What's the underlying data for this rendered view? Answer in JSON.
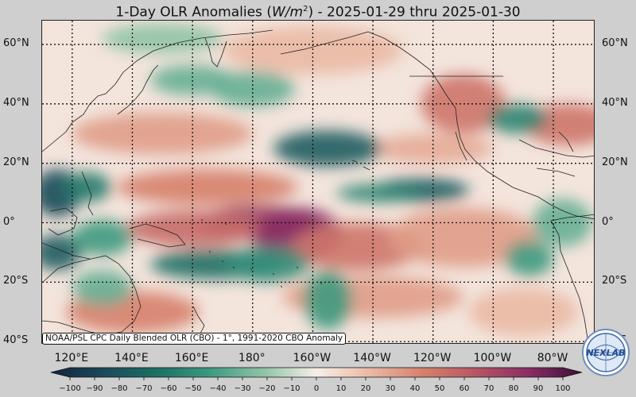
{
  "title": {
    "prefix": "1-Day OLR Anomalies (",
    "var": "W/m",
    "exp": "2",
    "suffix": ") - 2025-01-29 thru 2025-01-30"
  },
  "source_note": "NOAA/PSL CPC Daily Blended OLR (CBO) - 1°, 1991-2020 CBO Anomaly",
  "logo_text": "NEXLAB",
  "lat_labels": [
    {
      "text": "60°N",
      "lat": 60
    },
    {
      "text": "40°N",
      "lat": 40
    },
    {
      "text": "20°N",
      "lat": 20
    },
    {
      "text": "0°",
      "lat": 0
    },
    {
      "text": "20°S",
      "lat": -20
    },
    {
      "text": "40°S",
      "lat": -40
    }
  ],
  "lon_labels": [
    {
      "text": "120°E",
      "lon": 120
    },
    {
      "text": "140°E",
      "lon": 140
    },
    {
      "text": "160°E",
      "lon": 160
    },
    {
      "text": "180°",
      "lon": 180
    },
    {
      "text": "160°W",
      "lon": 200
    },
    {
      "text": "140°W",
      "lon": 220
    },
    {
      "text": "120°W",
      "lon": 240
    },
    {
      "text": "100°W",
      "lon": 260
    },
    {
      "text": "80°W",
      "lon": 280
    }
  ],
  "map_extent": {
    "lon_min": 110,
    "lon_max": 294,
    "lat_min": -41,
    "lat_max": 68
  },
  "colorbar": {
    "ticks": [
      -100,
      -90,
      -80,
      -70,
      -60,
      -50,
      -40,
      -30,
      -20,
      -10,
      0,
      10,
      20,
      30,
      40,
      50,
      60,
      70,
      80,
      90,
      100
    ],
    "min": -100,
    "max": 100,
    "colors": {
      "-100": "#13233e",
      "-80": "#1b4a5a",
      "-60": "#1d6f64",
      "-40": "#3e9a80",
      "-20": "#8fc3a6",
      "0": "#f7efe8",
      "20": "#eab9a4",
      "40": "#d6816c",
      "60": "#b65664",
      "80": "#8a2e64",
      "100": "#3a1036"
    }
  },
  "anomaly_features": [
    {
      "lon": 182,
      "lat": 0,
      "rx": 20,
      "ry": 6,
      "value": 70
    },
    {
      "lon": 195,
      "lat": -4,
      "rx": 15,
      "ry": 9,
      "value": 80
    },
    {
      "lon": 160,
      "lat": -2,
      "rx": 22,
      "ry": 6,
      "value": 50
    },
    {
      "lon": 215,
      "lat": -8,
      "rx": 22,
      "ry": 8,
      "value": 45
    },
    {
      "lon": 250,
      "lat": -5,
      "rx": 25,
      "ry": 10,
      "value": 30
    },
    {
      "lon": 165,
      "lat": 12,
      "rx": 30,
      "ry": 6,
      "value": 40
    },
    {
      "lon": 150,
      "lat": 30,
      "rx": 30,
      "ry": 7,
      "value": 30
    },
    {
      "lon": 250,
      "lat": 40,
      "rx": 14,
      "ry": 10,
      "value": 45
    },
    {
      "lon": 285,
      "lat": 33,
      "rx": 15,
      "ry": 7,
      "value": 45
    },
    {
      "lon": 240,
      "lat": 25,
      "rx": 20,
      "ry": 5,
      "value": 25
    },
    {
      "lon": 220,
      "lat": -25,
      "rx": 30,
      "ry": 7,
      "value": 30
    },
    {
      "lon": 140,
      "lat": -30,
      "rx": 22,
      "ry": 7,
      "value": 40
    },
    {
      "lon": 270,
      "lat": -30,
      "rx": 18,
      "ry": 8,
      "value": 20
    },
    {
      "lon": 200,
      "lat": 58,
      "rx": 30,
      "ry": 8,
      "value": 20
    },
    {
      "lon": 205,
      "lat": 25,
      "rx": 18,
      "ry": 6,
      "value": -70
    },
    {
      "lon": 236,
      "lat": 11,
      "rx": 16,
      "ry": 4,
      "value": -70
    },
    {
      "lon": 222,
      "lat": 10,
      "rx": 14,
      "ry": 3,
      "value": -50
    },
    {
      "lon": 168,
      "lat": -14,
      "rx": 22,
      "ry": 5,
      "value": -60
    },
    {
      "lon": 185,
      "lat": -14,
      "rx": 14,
      "ry": 6,
      "value": -45
    },
    {
      "lon": 205,
      "lat": -26,
      "rx": 8,
      "ry": 10,
      "value": -40
    },
    {
      "lon": 115,
      "lat": 10,
      "rx": 8,
      "ry": 8,
      "value": -80
    },
    {
      "lon": 125,
      "lat": 12,
      "rx": 8,
      "ry": 5,
      "value": -55
    },
    {
      "lon": 115,
      "lat": -10,
      "rx": 8,
      "ry": 6,
      "value": -70
    },
    {
      "lon": 130,
      "lat": -5,
      "rx": 10,
      "ry": 6,
      "value": -40
    },
    {
      "lon": 160,
      "lat": 48,
      "rx": 14,
      "ry": 5,
      "value": -30
    },
    {
      "lon": 180,
      "lat": 45,
      "rx": 14,
      "ry": 6,
      "value": -30
    },
    {
      "lon": 268,
      "lat": 35,
      "rx": 10,
      "ry": 5,
      "value": -50
    },
    {
      "lon": 272,
      "lat": -12,
      "rx": 8,
      "ry": 6,
      "value": -40
    },
    {
      "lon": 283,
      "lat": 0,
      "rx": 10,
      "ry": 8,
      "value": -30
    },
    {
      "lon": 150,
      "lat": 62,
      "rx": 20,
      "ry": 5,
      "value": -20
    },
    {
      "lon": 130,
      "lat": -22,
      "rx": 10,
      "ry": 6,
      "value": -30
    }
  ]
}
